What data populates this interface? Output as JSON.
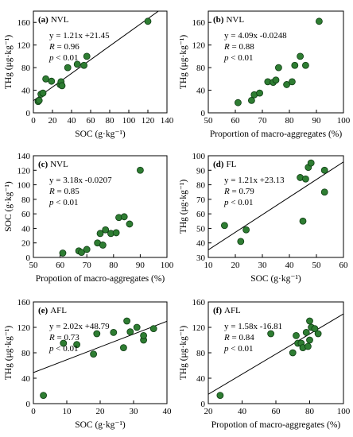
{
  "chart_data": [
    {
      "type": "scatter",
      "panel_label": "(a)",
      "site": "NVL",
      "xlabel": "SOC (g·kg⁻¹)",
      "ylabel": "THg (μg·kg⁻¹)",
      "xlim": [
        0,
        140
      ],
      "ylim": [
        0,
        180
      ],
      "xticks": [
        0,
        20,
        40,
        60,
        80,
        100,
        120,
        140
      ],
      "yticks": [
        0,
        40,
        80,
        120,
        160
      ],
      "grid": false,
      "annotation": {
        "equation": "y = 1.21x +21.45",
        "r_label": "R",
        "r_value": " = 0.96",
        "p_label": "p",
        "p_value": " < 0.01"
      },
      "fit": {
        "slope": 1.21,
        "intercept": 21.45
      },
      "points": [
        [
          5,
          20
        ],
        [
          6,
          22
        ],
        [
          8,
          33
        ],
        [
          10,
          35
        ],
        [
          13,
          60
        ],
        [
          19,
          56
        ],
        [
          28,
          50
        ],
        [
          29,
          55
        ],
        [
          30,
          48
        ],
        [
          36,
          80
        ],
        [
          46,
          86
        ],
        [
          53,
          84
        ],
        [
          56,
          100
        ],
        [
          120,
          162
        ]
      ]
    },
    {
      "type": "scatter",
      "panel_label": "(b)",
      "site": "NVL",
      "xlabel": "Proportion of macro-aggregates (%)",
      "ylabel": "THg (μg·kg⁻¹)",
      "xlim": [
        50,
        100
      ],
      "ylim": [
        0,
        180
      ],
      "xticks": [
        50,
        60,
        70,
        80,
        90,
        100
      ],
      "yticks": [
        0,
        40,
        80,
        120,
        160
      ],
      "grid": false,
      "annotation": {
        "equation": "y = 4.09x -0.0248",
        "r_label": "R",
        "r_value": " = 0.88",
        "p_label": "p",
        "p_value": " < 0.01"
      },
      "fit": {
        "slope": 4.09,
        "intercept": -0.0248
      },
      "points": [
        [
          61,
          18
        ],
        [
          66,
          22
        ],
        [
          67,
          32
        ],
        [
          69,
          35
        ],
        [
          72,
          55
        ],
        [
          74,
          54
        ],
        [
          75,
          58
        ],
        [
          76,
          80
        ],
        [
          79,
          50
        ],
        [
          81,
          55
        ],
        [
          82,
          84
        ],
        [
          84,
          100
        ],
        [
          86,
          84
        ],
        [
          91,
          162
        ]
      ]
    },
    {
      "type": "scatter",
      "panel_label": "(c)",
      "site": "NVL",
      "xlabel": "Propotion of macro-aggregates (%)",
      "ylabel": "SOC (g·kg⁻¹)",
      "xlim": [
        50,
        100
      ],
      "ylim": [
        0,
        140
      ],
      "xticks": [
        50,
        60,
        70,
        80,
        90,
        100
      ],
      "yticks": [
        0,
        20,
        40,
        60,
        80,
        100,
        120,
        140
      ],
      "grid": false,
      "annotation": {
        "equation": "y = 3.18x -0.0207",
        "r_label": "R",
        "r_value": " = 0.85",
        "p_label": "p",
        "p_value": " < 0.01"
      },
      "fit": {
        "slope": 3.18,
        "intercept": -0.0207
      },
      "points": [
        [
          61,
          6
        ],
        [
          67,
          9
        ],
        [
          68,
          7
        ],
        [
          70,
          11
        ],
        [
          74,
          20
        ],
        [
          75,
          33
        ],
        [
          76,
          17
        ],
        [
          77,
          38
        ],
        [
          79,
          33
        ],
        [
          81,
          34
        ],
        [
          82,
          55
        ],
        [
          84,
          56
        ],
        [
          86,
          46
        ],
        [
          90,
          120
        ]
      ]
    },
    {
      "type": "scatter",
      "panel_label": "(d)",
      "site": "FL",
      "xlabel": "SOC (g·kg⁻¹)",
      "ylabel": "THg (μg·kg⁻¹)",
      "xlim": [
        10,
        60
      ],
      "ylim": [
        30,
        100
      ],
      "xticks": [
        10,
        20,
        30,
        40,
        50,
        60
      ],
      "yticks": [
        30,
        40,
        50,
        60,
        70,
        80,
        90,
        100
      ],
      "grid": false,
      "annotation": {
        "equation": "y = 1.21x +23.13",
        "r_label": "R",
        "r_value": " = 0.79",
        "p_label": "p",
        "p_value": " < 0.01"
      },
      "fit": {
        "slope": 1.21,
        "intercept": 23.13
      },
      "points": [
        [
          16,
          52
        ],
        [
          22,
          41
        ],
        [
          24,
          49
        ],
        [
          44,
          85
        ],
        [
          45,
          55
        ],
        [
          46,
          84
        ],
        [
          47,
          92
        ],
        [
          48,
          95
        ],
        [
          53,
          75
        ],
        [
          53,
          90
        ]
      ]
    },
    {
      "type": "scatter",
      "panel_label": "(e)",
      "site": "AFL",
      "xlabel": "SOC (g·kg⁻¹)",
      "ylabel": "THg (μg·kg⁻¹)",
      "xlim": [
        0,
        40
      ],
      "ylim": [
        0,
        160
      ],
      "xticks": [
        0,
        10,
        20,
        30,
        40
      ],
      "yticks": [
        0,
        40,
        80,
        120,
        160
      ],
      "grid": false,
      "annotation": {
        "equation": "y = 2.02x +48.79",
        "r_label": "R",
        "r_value": " = 0.73",
        "p_label": "p",
        "p_value": " < 0.01"
      },
      "fit": {
        "slope": 2.02,
        "intercept": 48.79
      },
      "points": [
        [
          3,
          13
        ],
        [
          9,
          95
        ],
        [
          13,
          93
        ],
        [
          18,
          78
        ],
        [
          19,
          110
        ],
        [
          24,
          112
        ],
        [
          27,
          88
        ],
        [
          28,
          130
        ],
        [
          29,
          113
        ],
        [
          31,
          120
        ],
        [
          33,
          100
        ],
        [
          33,
          107
        ],
        [
          36,
          118
        ]
      ]
    },
    {
      "type": "scatter",
      "panel_label": "(f)",
      "site": "AFL",
      "xlabel": "Propotion of macro-aggregates (%)",
      "ylabel": "THg (μg·kg⁻¹)",
      "xlim": [
        20,
        100
      ],
      "ylim": [
        0,
        160
      ],
      "xticks": [
        20,
        40,
        60,
        80,
        100
      ],
      "yticks": [
        0,
        40,
        80,
        120,
        160
      ],
      "grid": false,
      "annotation": {
        "equation": "y = 1.58x -16.81",
        "r_label": "R",
        "r_value": " = 0.84",
        "p_label": "p",
        "p_value": " < 0.01"
      },
      "fit": {
        "slope": 1.58,
        "intercept": -16.81
      },
      "points": [
        [
          27,
          13
        ],
        [
          57,
          110
        ],
        [
          70,
          80
        ],
        [
          72,
          107
        ],
        [
          73,
          95
        ],
        [
          75,
          95
        ],
        [
          76,
          88
        ],
        [
          78,
          112
        ],
        [
          79,
          90
        ],
        [
          80,
          130
        ],
        [
          80,
          100
        ],
        [
          81,
          120
        ],
        [
          83,
          118
        ],
        [
          85,
          110
        ]
      ]
    }
  ]
}
